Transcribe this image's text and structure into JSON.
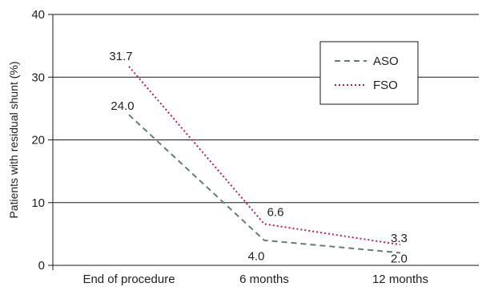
{
  "chart_data": {
    "type": "line",
    "categories": [
      "End of procedure",
      "6 months",
      "12 months"
    ],
    "series": [
      {
        "name": "ASO",
        "values": [
          24.0,
          4.0,
          2.0
        ],
        "color": "#5e7f7a",
        "dash": "dashed"
      },
      {
        "name": "FSO",
        "values": [
          31.7,
          6.6,
          3.3
        ],
        "color": "#c2185b",
        "dash": "dotted"
      }
    ],
    "title": "",
    "xlabel": "",
    "ylabel": "Patients with residual shunt (%)",
    "ylim": [
      0,
      40
    ],
    "yticks": [
      0,
      10,
      20,
      30,
      40
    ],
    "grid": true,
    "legend_position": "top-right"
  }
}
